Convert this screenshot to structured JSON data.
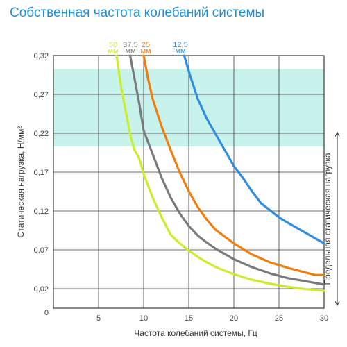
{
  "chart_data": {
    "type": "line",
    "title": "Собственная частота колебаний системы",
    "xlabel": "Частота колебаний системы, Гц",
    "ylabel": "Статическая нагрузка, Н/мм²",
    "xlim": [
      0,
      30
    ],
    "ylim": [
      0,
      0.32
    ],
    "x_ticks": [
      "5",
      "10",
      "15",
      "20",
      "25",
      "30"
    ],
    "y_ticks": [
      "0",
      "0,02",
      "0,07",
      "0,12",
      "0,17",
      "0,22",
      "0,27",
      "0,32"
    ],
    "grid": true,
    "highlight_band": {
      "y_from": 0.205,
      "y_to": 0.303,
      "color": "#c8f2ec"
    },
    "annotation": "Предельная статическая нагрузка",
    "annotation_range": [
      0,
      0.22
    ],
    "series": [
      {
        "name": "50",
        "unit": "мм",
        "color": "#c8ee2c",
        "x": [
          7.0,
          7.5,
          8.0,
          8.5,
          9,
          9.5,
          10,
          11,
          12,
          13,
          14,
          15,
          16,
          17,
          18,
          20,
          22,
          24,
          26,
          28,
          30
        ],
        "y": [
          0.32,
          0.28,
          0.25,
          0.22,
          0.2,
          0.19,
          0.17,
          0.14,
          0.115,
          0.093,
          0.082,
          0.073,
          0.065,
          0.058,
          0.052,
          0.043,
          0.036,
          0.031,
          0.027,
          0.024,
          0.022
        ]
      },
      {
        "name": "37,5",
        "unit": "мм",
        "color": "#7a7a7a",
        "x": [
          8.5,
          9,
          9.5,
          10,
          11,
          12,
          13,
          14,
          15,
          16,
          17,
          18,
          20,
          22,
          24,
          26,
          28,
          30
        ],
        "y": [
          0.32,
          0.29,
          0.26,
          0.225,
          0.195,
          0.165,
          0.14,
          0.12,
          0.104,
          0.092,
          0.083,
          0.075,
          0.062,
          0.052,
          0.044,
          0.038,
          0.034,
          0.03
        ]
      },
      {
        "name": "25",
        "unit": "мм",
        "color": "#f07e0e",
        "x": [
          10,
          10.5,
          11,
          12,
          13,
          14,
          15,
          16,
          17,
          18,
          20,
          22,
          24,
          26,
          28,
          29,
          30
        ],
        "y": [
          0.32,
          0.29,
          0.265,
          0.23,
          0.2,
          0.172,
          0.148,
          0.128,
          0.112,
          0.099,
          0.082,
          0.068,
          0.058,
          0.051,
          0.045,
          0.042,
          0.042
        ]
      },
      {
        "name": "12,5",
        "unit": "мм",
        "color": "#2f8de0",
        "x": [
          14.5,
          15,
          16,
          17,
          18,
          19,
          20,
          21,
          22,
          23,
          24,
          25,
          26,
          28,
          30
        ],
        "y": [
          0.32,
          0.3,
          0.265,
          0.24,
          0.22,
          0.2,
          0.18,
          0.165,
          0.148,
          0.133,
          0.124,
          0.115,
          0.108,
          0.095,
          0.082
        ]
      }
    ]
  }
}
